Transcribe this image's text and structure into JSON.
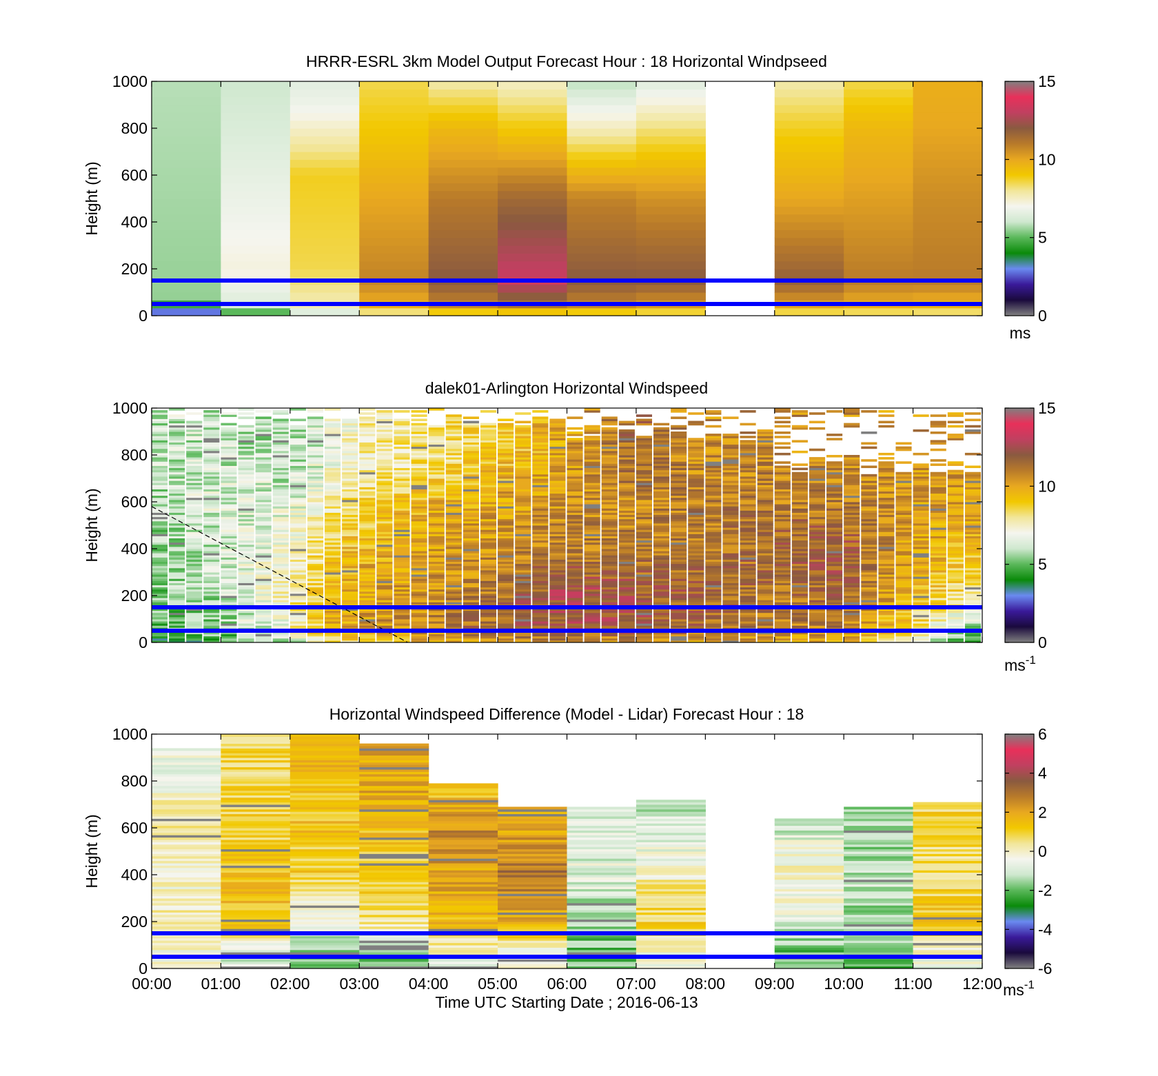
{
  "figure": {
    "xlabel": "Time UTC  Starting Date ; 2016-06-13",
    "x_tick_labels": [
      "00:00",
      "01:00",
      "02:00",
      "03:00",
      "04:00",
      "05:00",
      "06:00",
      "07:00",
      "08:00",
      "09:00",
      "10:00",
      "11:00",
      "12:00"
    ]
  },
  "colors": {
    "reference_lines": "#0000ff",
    "colormap_speed": [
      "#808080",
      "#1a0a3d",
      "#3a1a9a",
      "#6a8af0",
      "#0a8a0a",
      "#5ab85a",
      "#cfe8cf",
      "#f5f5ef",
      "#f2e69a",
      "#f2c800",
      "#e8a820",
      "#b87a2a",
      "#8a5a40",
      "#c04060",
      "#e8305a",
      "#808080"
    ],
    "colormap_difference": [
      "#808080",
      "#1a0a3d",
      "#3a1a9a",
      "#6a8af0",
      "#0a8a0a",
      "#5ab85a",
      "#cfe8cf",
      "#f5f5ef",
      "#f2e69a",
      "#f2c800",
      "#e8a820",
      "#b87a2a",
      "#8a5a40",
      "#c04060",
      "#e8305a",
      "#808080"
    ]
  },
  "chart_data": [
    {
      "type": "heatmap",
      "title": "HRRR-ESRL 3km Model Output   Forecast Hour : 18 Horizontal Windpseed",
      "ylabel": "Height (m)",
      "xlabel": "",
      "x": [
        "00:00",
        "01:00",
        "02:00",
        "03:00",
        "04:00",
        "05:00",
        "06:00",
        "07:00",
        "08:00",
        "09:00",
        "10:00",
        "11:00",
        "12:00"
      ],
      "xlim": [
        0,
        12
      ],
      "ylim": [
        0,
        1000
      ],
      "y_ticks": [
        0,
        200,
        400,
        600,
        800,
        1000
      ],
      "reference_lines_m": [
        50,
        150
      ],
      "colorbar": {
        "range": [
          0,
          15
        ],
        "ticks": [
          0,
          5,
          10,
          15
        ],
        "unit": "ms"
      },
      "columns": [
        {
          "hour": 0,
          "levels": [
            [
              0,
              2.6
            ],
            [
              30,
              3.0
            ],
            [
              60,
              5.5
            ],
            [
              1000,
              5.8
            ]
          ]
        },
        {
          "hour": 1,
          "levels": [
            [
              0,
              3.5
            ],
            [
              30,
              6.2
            ],
            [
              200,
              7.2
            ],
            [
              1000,
              6.0
            ]
          ]
        },
        {
          "hour": 2,
          "levels": [
            [
              0,
              5.0
            ],
            [
              30,
              7.6
            ],
            [
              200,
              8.5
            ],
            [
              600,
              8.8
            ],
            [
              900,
              6.8
            ],
            [
              1000,
              6.5
            ]
          ]
        },
        {
          "hour": 3,
          "levels": [
            [
              0,
              6.5
            ],
            [
              30,
              9.6
            ],
            [
              150,
              10.8
            ],
            [
              500,
              10.0
            ],
            [
              800,
              9.0
            ],
            [
              1000,
              8.5
            ]
          ]
        },
        {
          "hour": 4,
          "levels": [
            [
              0,
              7.0
            ],
            [
              30,
              10.5
            ],
            [
              150,
              12.0
            ],
            [
              500,
              11.0
            ],
            [
              800,
              9.5
            ],
            [
              1000,
              7.8
            ]
          ]
        },
        {
          "hour": 5,
          "levels": [
            [
              0,
              7.0
            ],
            [
              30,
              10.8
            ],
            [
              150,
              13.3
            ],
            [
              500,
              11.5
            ],
            [
              800,
              9.0
            ],
            [
              1000,
              7.5
            ]
          ]
        },
        {
          "hour": 6,
          "levels": [
            [
              0,
              7.0
            ],
            [
              30,
              10.5
            ],
            [
              150,
              12.0
            ],
            [
              500,
              10.8
            ],
            [
              800,
              7.6
            ],
            [
              1000,
              5.8
            ]
          ]
        },
        {
          "hour": 7,
          "levels": [
            [
              0,
              7.0
            ],
            [
              30,
              10.0
            ],
            [
              150,
              12.0
            ],
            [
              500,
              10.5
            ],
            [
              800,
              8.2
            ],
            [
              1000,
              6.4
            ]
          ]
        },
        {
          "hour": 9,
          "levels": [
            [
              0,
              7.0
            ],
            [
              30,
              9.8
            ],
            [
              150,
              11.8
            ],
            [
              500,
              10.0
            ],
            [
              800,
              8.8
            ],
            [
              1000,
              7.8
            ]
          ]
        },
        {
          "hour": 10,
          "levels": [
            [
              0,
              7.0
            ],
            [
              30,
              9.6
            ],
            [
              150,
              11.0
            ],
            [
              500,
              10.2
            ],
            [
              800,
              9.5
            ],
            [
              1000,
              8.5
            ]
          ]
        },
        {
          "hour": 11,
          "levels": [
            [
              0,
              7.0
            ],
            [
              30,
              9.4
            ],
            [
              150,
              11.0
            ],
            [
              500,
              10.6
            ],
            [
              800,
              10.0
            ],
            [
              1000,
              9.8
            ]
          ]
        }
      ]
    },
    {
      "type": "heatmap",
      "title": "dalek01-Arlington  Horizontal Windspeed",
      "ylabel": "Height (m)",
      "xlabel": "",
      "x": [
        "00:00",
        "01:00",
        "02:00",
        "03:00",
        "04:00",
        "05:00",
        "06:00",
        "07:00",
        "08:00",
        "09:00",
        "10:00",
        "11:00",
        "12:00"
      ],
      "xlim": [
        0,
        12
      ],
      "ylim": [
        0,
        1000
      ],
      "y_ticks": [
        0,
        200,
        400,
        600,
        800,
        1000
      ],
      "reference_lines_m": [
        50,
        150
      ],
      "dashed_line": {
        "x": [
          0,
          3.7
        ],
        "y": [
          580,
          0
        ]
      },
      "colorbar": {
        "range": [
          0,
          15
        ],
        "ticks": [
          0,
          5,
          10,
          15
        ],
        "unit": "ms-1"
      },
      "profiles": [
        {
          "hour": 0.0,
          "speeds": [
            5.0,
            5.2,
            5.5,
            5.8,
            6.0
          ]
        },
        {
          "hour": 1.0,
          "speeds": [
            5.5,
            6.0,
            6.2,
            6.5,
            6.2
          ]
        },
        {
          "hour": 2.0,
          "speeds": [
            7.0,
            7.5,
            7.0,
            6.5,
            5.8
          ]
        },
        {
          "hour": 2.5,
          "speeds": [
            9.5,
            9.2,
            8.5,
            7.2,
            6.5
          ]
        },
        {
          "hour": 3.0,
          "speeds": [
            10.2,
            10.0,
            9.5,
            8.5,
            7.5
          ]
        },
        {
          "hour": 4.0,
          "speeds": [
            10.8,
            10.5,
            10.0,
            9.5,
            8.0
          ]
        },
        {
          "hour": 5.0,
          "speeds": [
            11.5,
            11.2,
            10.5,
            10.0,
            9.0
          ]
        },
        {
          "hour": 6.0,
          "speeds": [
            12.0,
            12.5,
            11.0,
            10.5,
            10.0
          ]
        },
        {
          "hour": 7.0,
          "speeds": [
            11.8,
            12.0,
            11.0,
            10.8,
            11.5
          ]
        },
        {
          "hour": 8.0,
          "speeds": [
            11.5,
            11.5,
            11.2,
            11.0,
            10.5
          ]
        },
        {
          "hour": 9.0,
          "speeds": [
            11.0,
            11.2,
            11.5,
            11.0,
            10.8
          ]
        },
        {
          "hour": 10.0,
          "speeds": [
            10.8,
            11.5,
            12.0,
            11.0,
            10.5
          ]
        },
        {
          "hour": 11.0,
          "speeds": [
            8.5,
            9.5,
            10.0,
            10.2,
            10.5
          ]
        },
        {
          "hour": 11.75,
          "speeds": [
            5.5,
            8.0,
            9.5,
            10.0,
            10.5
          ]
        }
      ],
      "profile_heights_m": [
        50,
        200,
        400,
        600,
        800
      ]
    },
    {
      "type": "heatmap",
      "title": "Horizontal Windspeed Difference (Model - Lidar) Forecast Hour : 18",
      "ylabel": "Height (m)",
      "xlabel": "Time UTC  Starting Date ; 2016-06-13",
      "x": [
        "00:00",
        "01:00",
        "02:00",
        "03:00",
        "04:00",
        "05:00",
        "06:00",
        "07:00",
        "08:00",
        "09:00",
        "10:00",
        "11:00",
        "12:00"
      ],
      "xlim": [
        0,
        12
      ],
      "ylim": [
        0,
        1000
      ],
      "y_ticks": [
        0,
        200,
        400,
        600,
        800,
        1000
      ],
      "reference_lines_m": [
        50,
        150
      ],
      "colorbar": {
        "range": [
          -6,
          6
        ],
        "ticks": [
          -6,
          -4,
          -2,
          0,
          2,
          4,
          6
        ],
        "unit": "ms-1"
      },
      "columns": [
        {
          "hour": 0,
          "top_m": 940,
          "mean_diff": [
            -0.3,
            0.3,
            -0.2,
            0.5,
            -0.5
          ]
        },
        {
          "hour": 1,
          "top_m": 1000,
          "mean_diff": [
            -1.0,
            1.5,
            1.2,
            1.0,
            0.8
          ]
        },
        {
          "hour": 2,
          "top_m": 1000,
          "mean_diff": [
            -2.0,
            -0.5,
            1.0,
            1.3,
            1.5
          ]
        },
        {
          "hour": 3,
          "top_m": 960,
          "mean_diff": [
            -2.0,
            0.5,
            1.0,
            1.5,
            2.0
          ]
        },
        {
          "hour": 4,
          "top_m": 790,
          "mean_diff": [
            -0.5,
            1.5,
            2.0,
            2.5,
            1.0
          ]
        },
        {
          "hour": 5,
          "top_m": 690,
          "mean_diff": [
            -0.5,
            2.0,
            3.0,
            2.0,
            1.5
          ]
        },
        {
          "hour": 6,
          "top_m": 690,
          "mean_diff": [
            -2.0,
            -1.5,
            -0.8,
            -0.8,
            -1.0
          ]
        },
        {
          "hour": 7,
          "top_m": 720,
          "mean_diff": [
            -0.5,
            1.0,
            0.0,
            -1.0,
            -1.5
          ]
        },
        {
          "hour": 9,
          "top_m": 640,
          "mean_diff": [
            -2.0,
            -0.8,
            0.0,
            -1.0,
            -2.0
          ]
        },
        {
          "hour": 10,
          "top_m": 690,
          "mean_diff": [
            -2.0,
            -1.5,
            -1.2,
            -1.5,
            -2.5
          ]
        },
        {
          "hour": 11,
          "top_m": 710,
          "mean_diff": [
            -0.5,
            1.5,
            0.5,
            0.8,
            1.0
          ]
        }
      ]
    }
  ]
}
